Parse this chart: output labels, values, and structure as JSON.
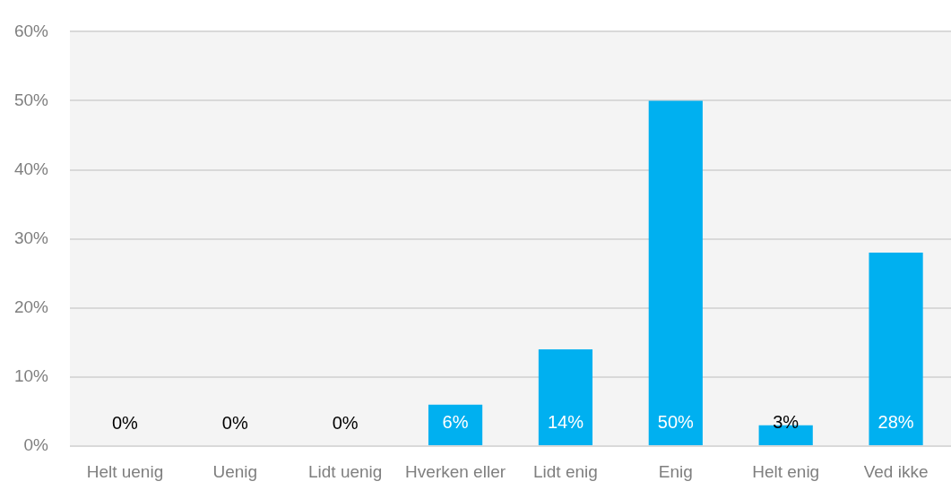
{
  "chart_data": {
    "type": "bar",
    "categories": [
      "Helt uenig",
      "Uenig",
      "Lidt uenig",
      "Hverken eller",
      "Lidt enig",
      "Enig",
      "Helt enig",
      "Ved ikke"
    ],
    "values": [
      0,
      0,
      0,
      6,
      14,
      50,
      3,
      28
    ],
    "value_labels": [
      "0%",
      "0%",
      "0%",
      "6%",
      "14%",
      "50%",
      "3%",
      "28%"
    ],
    "color": "#00b0f0",
    "ylim": [
      0,
      60
    ],
    "yticks": [
      {
        "value": 0,
        "label": "0%"
      },
      {
        "value": 10,
        "label": "10%"
      },
      {
        "value": 20,
        "label": "20%"
      },
      {
        "value": 30,
        "label": "30%"
      },
      {
        "value": 40,
        "label": "40%"
      },
      {
        "value": 50,
        "label": "50%"
      },
      {
        "value": 60,
        "label": "60%"
      }
    ],
    "grid": "y"
  }
}
